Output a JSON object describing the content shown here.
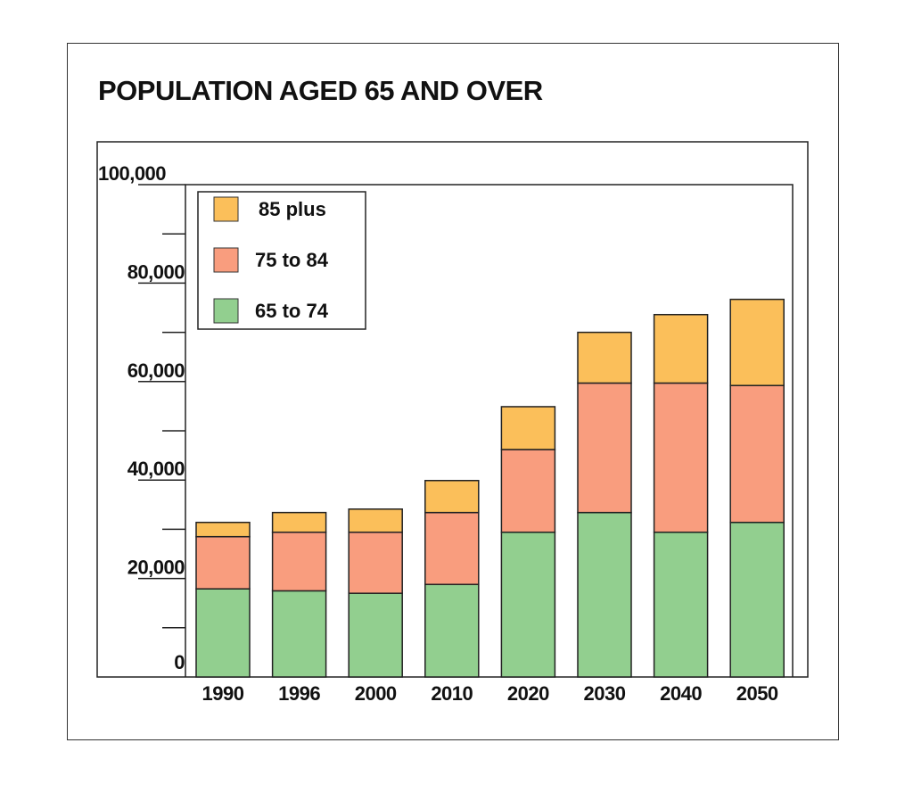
{
  "chart_data": {
    "type": "bar",
    "stacked": true,
    "title": "POPULATION AGED 65 AND OVER",
    "xlabel": "",
    "ylabel": "",
    "ylim": [
      0,
      100000
    ],
    "yticks": [
      "0",
      "20,000",
      "40,000",
      "60,000",
      "80,000",
      "100,000"
    ],
    "ytick_values": [
      0,
      20000,
      40000,
      60000,
      80000,
      100000
    ],
    "minor_tick_step": 10000,
    "grid": false,
    "legend_position": "top-left",
    "categories": [
      "1990",
      "1996",
      "2000",
      "2010",
      "2020",
      "2030",
      "2040",
      "2050"
    ],
    "series": [
      {
        "name": "65 to 74",
        "color": "#92cf8f",
        "values": [
          17900,
          17500,
          17000,
          18800,
          29400,
          33400,
          29400,
          31400
        ]
      },
      {
        "name": "75 to 84",
        "color": "#f99d7e",
        "values": [
          10600,
          11900,
          12400,
          14600,
          16800,
          26300,
          30300,
          27800
        ]
      },
      {
        "name": "85 plus",
        "color": "#fbbf5a",
        "values": [
          2900,
          4000,
          4700,
          6500,
          8700,
          10300,
          13900,
          17500
        ]
      }
    ]
  }
}
